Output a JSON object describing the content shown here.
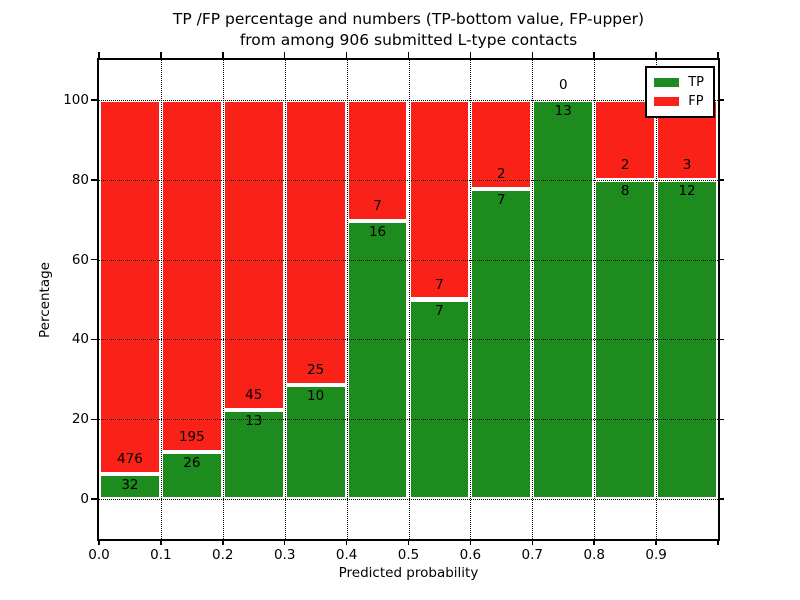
{
  "title": {
    "line1": "TP /FP percentage and numbers (TP-bottom value, FP-upper)",
    "line2": "from among 906 submitted L-type contacts"
  },
  "chart_data": {
    "type": "bar",
    "stacked": true,
    "normalized": "each bar scaled to 100%",
    "total_contacts": 906,
    "title": "TP /FP percentage and numbers (TP-bottom value, FP-upper) from among 906 submitted L-type contacts",
    "xlabel": "Predicted probability",
    "ylabel": "Percentage",
    "categories": [
      "0.0-0.1",
      "0.1-0.2",
      "0.2-0.3",
      "0.3-0.4",
      "0.4-0.5",
      "0.5-0.6",
      "0.6-0.7",
      "0.7-0.8",
      "0.8-0.9",
      "0.9-1.0"
    ],
    "series": [
      {
        "name": "TP",
        "color": "#1e8b1e",
        "values": [
          32,
          26,
          13,
          10,
          16,
          7,
          7,
          13,
          8,
          12
        ]
      },
      {
        "name": "FP",
        "color": "#fa2218",
        "values": [
          476,
          195,
          45,
          25,
          7,
          7,
          2,
          0,
          2,
          3
        ]
      }
    ],
    "tp_percent_of_bar": [
      6.3,
      11.8,
      22.4,
      28.6,
      69.6,
      50.0,
      77.8,
      100.0,
      80.0,
      80.0
    ],
    "x_ticks": [
      "0.0",
      "0.1",
      "0.2",
      "0.3",
      "0.4",
      "0.5",
      "0.6",
      "0.7",
      "0.8",
      "0.9"
    ],
    "y_ticks": [
      0,
      20,
      40,
      60,
      80,
      100
    ],
    "xlim": [
      0.0,
      1.0
    ],
    "ylim": [
      -10,
      110
    ],
    "grid": "dotted black, on top of bars",
    "bar_edge_color": "#ffffff",
    "legend": {
      "position": "upper right",
      "entries": [
        {
          "label": "TP",
          "color": "#1e8b1e"
        },
        {
          "label": "FP",
          "color": "#fa2218"
        }
      ]
    }
  }
}
